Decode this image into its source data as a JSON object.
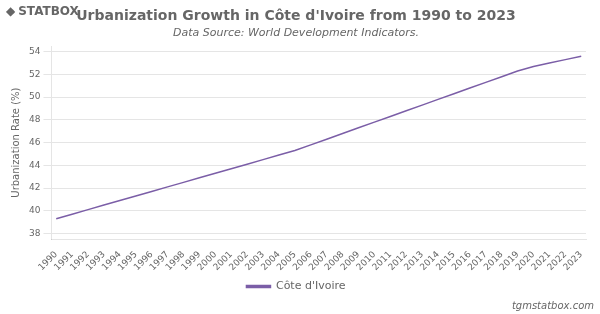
{
  "chart_data": {
    "type": "line",
    "title": "Urbanization Growth in Côte d'Ivoire from 1990 to 2023",
    "subtitle": "Data Source: World Development Indicators.",
    "y_label": "Urbanization Rate (%)",
    "x": [
      1990,
      1991,
      1992,
      1993,
      1994,
      1995,
      1996,
      1997,
      1998,
      1999,
      2000,
      2001,
      2002,
      2003,
      2004,
      2005,
      2006,
      2007,
      2008,
      2009,
      2010,
      2011,
      2012,
      2013,
      2014,
      2015,
      2016,
      2017,
      2018,
      2019,
      2020,
      2021,
      2022,
      2023
    ],
    "series": [
      {
        "name": "Côte d'Ivoire",
        "color": "#7b5ea7",
        "values": [
          39.3,
          39.7,
          40.1,
          40.5,
          40.9,
          41.3,
          41.7,
          42.1,
          42.5,
          42.9,
          43.3,
          43.7,
          44.1,
          44.5,
          44.9,
          45.3,
          45.8,
          46.3,
          46.8,
          47.3,
          47.8,
          48.3,
          48.8,
          49.3,
          49.8,
          50.3,
          50.8,
          51.3,
          51.8,
          52.3,
          52.7,
          53.0,
          53.3,
          53.6
        ]
      }
    ],
    "xlim": [
      1989.7,
      2023.3
    ],
    "xticks": [
      1990,
      1991,
      1992,
      1993,
      1994,
      1995,
      1996,
      1997,
      1998,
      1999,
      2000,
      2001,
      2002,
      2003,
      2004,
      2005,
      2006,
      2007,
      2008,
      2009,
      2010,
      2011,
      2012,
      2013,
      2014,
      2015,
      2016,
      2017,
      2018,
      2019,
      2020,
      2021,
      2022,
      2023
    ],
    "ylim": [
      37.5,
      54.5
    ],
    "yticks": [
      38,
      40,
      42,
      44,
      46,
      48,
      50,
      52,
      54
    ],
    "grid": true,
    "legend": "bottom",
    "annotations": [
      "◆",
      "STAT",
      "BOX",
      "tgmstatbox.com"
    ]
  }
}
